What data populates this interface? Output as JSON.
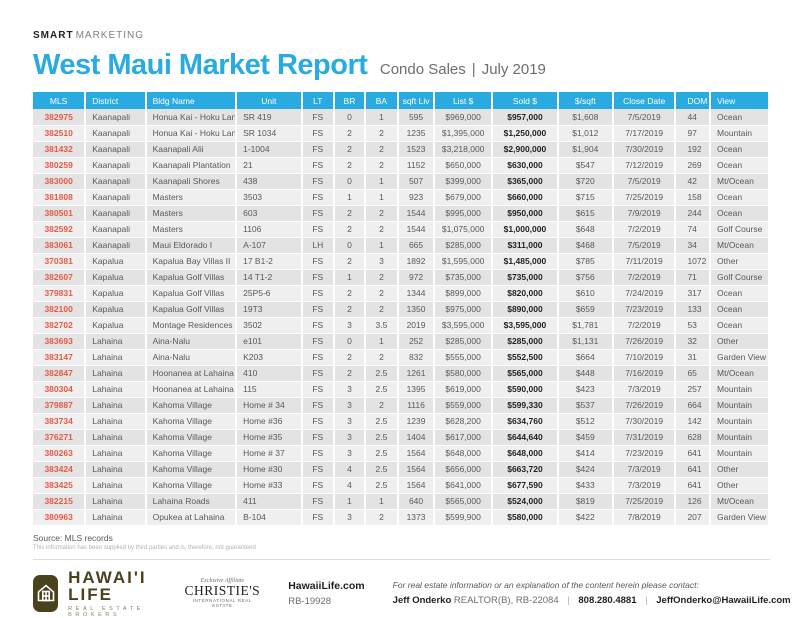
{
  "brand": {
    "smart": "SMART",
    "marketing": "MARKETING"
  },
  "header": {
    "title": "West Maui Market Report",
    "subtitle": "Condo Sales",
    "separator": "|",
    "period": "July 2019"
  },
  "table": {
    "columns": [
      "MLS",
      "District",
      "Bldg Name",
      "Unit",
      "LT",
      "BR",
      "BA",
      "sqft Liv",
      "List $",
      "Sold $",
      "$/sqft",
      "Close Date",
      "DOM",
      "View"
    ],
    "rows": [
      [
        "382975",
        "Kaanapali",
        "Honua Kai - Hoku Lani",
        "SR 419",
        "FS",
        "0",
        "1",
        "595",
        "$969,000",
        "$957,000",
        "$1,608",
        "7/5/2019",
        "44",
        "Ocean"
      ],
      [
        "382510",
        "Kaanapali",
        "Honua Kai - Hoku Lani",
        "SR 1034",
        "FS",
        "2",
        "2",
        "1235",
        "$1,395,000",
        "$1,250,000",
        "$1,012",
        "7/17/2019",
        "97",
        "Mountain"
      ],
      [
        "381432",
        "Kaanapali",
        "Kaanapali Alii",
        "1-1004",
        "FS",
        "2",
        "2",
        "1523",
        "$3,218,000",
        "$2,900,000",
        "$1,904",
        "7/30/2019",
        "192",
        "Ocean"
      ],
      [
        "380259",
        "Kaanapali",
        "Kaanapali Plantation",
        "21",
        "FS",
        "2",
        "2",
        "1152",
        "$650,000",
        "$630,000",
        "$547",
        "7/12/2019",
        "269",
        "Ocean"
      ],
      [
        "383000",
        "Kaanapali",
        "Kaanapali Shores",
        "438",
        "FS",
        "0",
        "1",
        "507",
        "$399,000",
        "$365,000",
        "$720",
        "7/5/2019",
        "42",
        "Mt/Ocean"
      ],
      [
        "381808",
        "Kaanapali",
        "Masters",
        "3503",
        "FS",
        "1",
        "1",
        "923",
        "$679,000",
        "$660,000",
        "$715",
        "7/25/2019",
        "158",
        "Ocean"
      ],
      [
        "380501",
        "Kaanapali",
        "Masters",
        "603",
        "FS",
        "2",
        "2",
        "1544",
        "$995,000",
        "$950,000",
        "$615",
        "7/9/2019",
        "244",
        "Ocean"
      ],
      [
        "382592",
        "Kaanapali",
        "Masters",
        "1106",
        "FS",
        "2",
        "2",
        "1544",
        "$1,075,000",
        "$1,000,000",
        "$648",
        "7/2/2019",
        "74",
        "Golf Course"
      ],
      [
        "383061",
        "Kaanapali",
        "Maui Eldorado I",
        "A-107",
        "LH",
        "0",
        "1",
        "665",
        "$285,000",
        "$311,000",
        "$468",
        "7/5/2019",
        "34",
        "Mt/Ocean"
      ],
      [
        "370381",
        "Kapalua",
        "Kapalua Bay Villas II",
        "17 B1-2",
        "FS",
        "2",
        "3",
        "1892",
        "$1,595,000",
        "$1,485,000",
        "$785",
        "7/11/2019",
        "1072",
        "Other"
      ],
      [
        "382607",
        "Kapalua",
        "Kapalua Golf Villas",
        "14 T1-2",
        "FS",
        "1",
        "2",
        "972",
        "$735,000",
        "$735,000",
        "$756",
        "7/2/2019",
        "71",
        "Golf Course"
      ],
      [
        "379831",
        "Kapalua",
        "Kapalua Golf Villas",
        "25P5-6",
        "FS",
        "2",
        "2",
        "1344",
        "$899,000",
        "$820,000",
        "$610",
        "7/24/2019",
        "317",
        "Ocean"
      ],
      [
        "382100",
        "Kapalua",
        "Kapalua Golf Villas",
        "19T3",
        "FS",
        "2",
        "2",
        "1350",
        "$975,000",
        "$890,000",
        "$659",
        "7/23/2019",
        "133",
        "Ocean"
      ],
      [
        "382702",
        "Kapalua",
        "Montage Residences",
        "3502",
        "FS",
        "3",
        "3.5",
        "2019",
        "$3,595,000",
        "$3,595,000",
        "$1,781",
        "7/2/2019",
        "53",
        "Ocean"
      ],
      [
        "383693",
        "Lahaina",
        "Aina-Nalu",
        "e101",
        "FS",
        "0",
        "1",
        "252",
        "$285,000",
        "$285,000",
        "$1,131",
        "7/26/2019",
        "32",
        "Other"
      ],
      [
        "383147",
        "Lahaina",
        "Aina-Nalu",
        "K203",
        "FS",
        "2",
        "2",
        "832",
        "$555,000",
        "$552,500",
        "$664",
        "7/10/2019",
        "31",
        "Garden View"
      ],
      [
        "382847",
        "Lahaina",
        "Hoonanea at Lahaina",
        "410",
        "FS",
        "2",
        "2.5",
        "1261",
        "$580,000",
        "$565,000",
        "$448",
        "7/16/2019",
        "65",
        "Mt/Ocean"
      ],
      [
        "380304",
        "Lahaina",
        "Hoonanea at Lahaina",
        "115",
        "FS",
        "3",
        "2.5",
        "1395",
        "$619,000",
        "$590,000",
        "$423",
        "7/3/2019",
        "257",
        "Mountain"
      ],
      [
        "379887",
        "Lahaina",
        "Kahoma Village",
        "Home # 34",
        "FS",
        "3",
        "2",
        "1116",
        "$559,000",
        "$599,330",
        "$537",
        "7/26/2019",
        "664",
        "Mountain"
      ],
      [
        "383734",
        "Lahaina",
        "Kahoma Village",
        "Home #36",
        "FS",
        "3",
        "2.5",
        "1239",
        "$628,200",
        "$634,760",
        "$512",
        "7/30/2019",
        "142",
        "Mountain"
      ],
      [
        "376271",
        "Lahaina",
        "Kahoma Village",
        "Home #35",
        "FS",
        "3",
        "2.5",
        "1404",
        "$617,000",
        "$644,640",
        "$459",
        "7/31/2019",
        "628",
        "Mountain"
      ],
      [
        "380263",
        "Lahaina",
        "Kahoma Village",
        "Home # 37",
        "FS",
        "3",
        "2.5",
        "1564",
        "$648,000",
        "$648,000",
        "$414",
        "7/23/2019",
        "641",
        "Mountain"
      ],
      [
        "383424",
        "Lahaina",
        "Kahoma Village",
        "Home #30",
        "FS",
        "4",
        "2.5",
        "1564",
        "$656,000",
        "$663,720",
        "$424",
        "7/3/2019",
        "641",
        "Other"
      ],
      [
        "383425",
        "Lahaina",
        "Kahoma Village",
        "Home #33",
        "FS",
        "4",
        "2.5",
        "1564",
        "$641,000",
        "$677,590",
        "$433",
        "7/3/2019",
        "641",
        "Other"
      ],
      [
        "382215",
        "Lahaina",
        "Lahaina Roads",
        "411",
        "FS",
        "1",
        "1",
        "640",
        "$565,000",
        "$524,000",
        "$819",
        "7/25/2019",
        "126",
        "Mt/Ocean"
      ],
      [
        "380963",
        "Lahaina",
        "Opukea at Lahaina",
        "B-104",
        "FS",
        "3",
        "2",
        "1373",
        "$599,900",
        "$580,000",
        "$422",
        "7/8/2019",
        "207",
        "Garden View"
      ]
    ],
    "source": "Source: MLS records",
    "disclaimer": "This information has been supplied by third parties and is, therefore, not guaranteed"
  },
  "footer": {
    "hawaii_life": {
      "name": "HAWAI'I LIFE",
      "tagline": "REAL ESTATE BROKERS"
    },
    "christies": {
      "affiliate": "Exclusive Affiliate",
      "name": "CHRISTIE'S",
      "sub": "INTERNATIONAL REAL ESTATE"
    },
    "license": {
      "website": "HawaiiLife.com",
      "rb": "RB-19928"
    },
    "contact": {
      "intro": "For real estate information or an explanation of the content herein please contact:",
      "name": "Jeff Onderko",
      "title": "REALTOR(B), RB-22084",
      "phone": "808.280.4881",
      "email": "JeffOnderko@HawaiiLife.com",
      "separator": "|"
    }
  },
  "colors": {
    "accent_cyan": "#29ABE2",
    "mls_link_red": "#E45B47",
    "row_odd": "#E3E3E3",
    "row_even": "#EFEFEF",
    "sold_text": "#231F20",
    "body_text": "#58595B",
    "logo_brown": "#4A421D"
  }
}
